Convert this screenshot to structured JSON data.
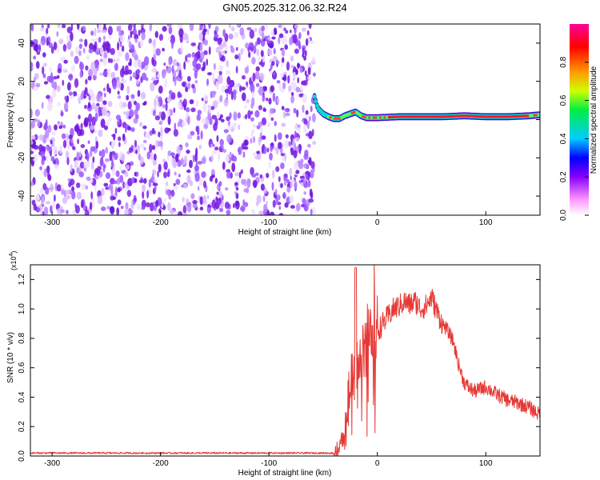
{
  "figure": {
    "title": "GN05.2025.312.06.32.R24"
  },
  "colors": {
    "snr_line": "#e53935",
    "scatter_purple": "#7b1fe6",
    "colorscale": [
      "#ffffff",
      "#ff99ff",
      "#8800ff",
      "#0000ff",
      "#00ccff",
      "#00ee44",
      "#ccff00",
      "#ff9900",
      "#ff0000",
      "#ff0099"
    ]
  },
  "chart_data": [
    {
      "id": "spectrogram",
      "type": "heatmap",
      "title": "GN05.2025.312.06.32.R24",
      "xlabel": "Height of straight line (km)",
      "ylabel": "Frequency (Hz)",
      "xlim": [
        -320,
        150
      ],
      "ylim": [
        -50,
        50
      ],
      "x_ticks": [
        -300,
        -200,
        -100,
        0,
        100
      ],
      "y_ticks": [
        -40,
        -20,
        0,
        20,
        40
      ],
      "noise_region_x": [
        -320,
        -58
      ],
      "signal_ridge": {
        "x": [
          -58,
          -55,
          -50,
          -45,
          -40,
          -35,
          -30,
          -25,
          -20,
          -15,
          -10,
          0,
          20,
          40,
          60,
          80,
          100,
          120,
          140,
          150
        ],
        "freq": [
          12,
          6,
          3,
          1.5,
          0.5,
          0.5,
          2,
          3,
          4,
          2,
          1,
          1,
          1.5,
          1.5,
          1.5,
          2,
          1.5,
          1.5,
          2,
          2.5
        ]
      },
      "colorbar": {
        "label": "Normalized spectral amplitude",
        "range": [
          0,
          1
        ],
        "ticks": [
          "0.0",
          "0.2",
          "0.4",
          "0.6",
          "0.8"
        ]
      },
      "grid": false
    },
    {
      "id": "snr",
      "type": "line",
      "xlabel": "Height of straight line (km)",
      "ylabel": "SNR (10 * v/v)",
      "y_multiplier": "(x10",
      "y_multiplier_exp": "4",
      "y_multiplier_close": ")",
      "xlim": [
        -320,
        150
      ],
      "ylim": [
        0,
        1.3
      ],
      "x_ticks": [
        -300,
        -200,
        -100,
        0,
        100
      ],
      "y_ticks": [
        "0.0",
        "0.2",
        "0.4",
        "0.6",
        "0.8",
        "1.0",
        "1.2"
      ],
      "series": [
        {
          "x": [
            -320,
            -200,
            -100,
            -40,
            -35,
            -30,
            -28,
            -25,
            -22,
            -20,
            -18,
            -15,
            -12,
            -10,
            -8,
            -5,
            -3,
            -2,
            0,
            5,
            10,
            15,
            20,
            25,
            30,
            35,
            40,
            45,
            50,
            55,
            60,
            65,
            70,
            75,
            80,
            85,
            90,
            100,
            110,
            120,
            130,
            140,
            150
          ],
          "y": [
            0.02,
            0.02,
            0.02,
            0.02,
            0.05,
            0.15,
            0.35,
            0.5,
            0.55,
            0.4,
            0.7,
            0.6,
            0.8,
            0.75,
            0.85,
            0.9,
            1.1,
            0.9,
            0.85,
            0.9,
            0.95,
            1.0,
            1.02,
            1.05,
            1.03,
            1.05,
            1.0,
            1.02,
            1.08,
            0.98,
            0.9,
            0.85,
            0.78,
            0.62,
            0.5,
            0.46,
            0.44,
            0.47,
            0.42,
            0.38,
            0.36,
            0.33,
            0.28
          ]
        }
      ],
      "grid": false
    }
  ]
}
